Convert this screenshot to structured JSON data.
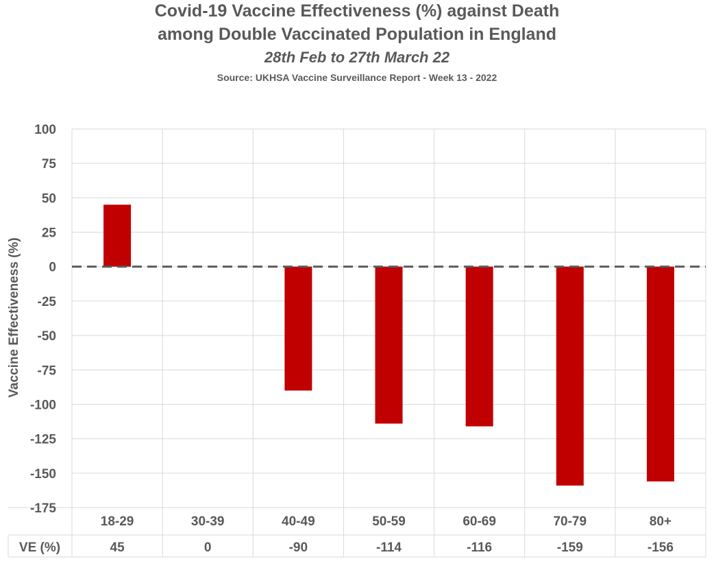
{
  "header": {
    "title_line1": "Covid-19 Vaccine Effectiveness (%) against Death",
    "title_line2": "among Double Vaccinated Population in England",
    "subtitle": "28th Feb to 27th March 22",
    "source": "Source: UKHSA Vaccine Surveillance Report - Week 13 - 2022"
  },
  "chart_data": {
    "type": "bar",
    "title": "Covid-19 Vaccine Effectiveness (%) against Death among Double Vaccinated Population in England",
    "subtitle": "28th Feb to 27th March 22",
    "xlabel": "",
    "ylabel": "Vaccine Effectiveness (%)",
    "categories": [
      "18-29",
      "30-39",
      "40-49",
      "50-59",
      "60-69",
      "70-79",
      "80+"
    ],
    "values": [
      45,
      0,
      -90,
      -114,
      -116,
      -159,
      -156
    ],
    "ylim": [
      -175,
      100
    ],
    "yticks": [
      100,
      75,
      50,
      25,
      0,
      -25,
      -50,
      -75,
      -100,
      -125,
      -150,
      -175
    ],
    "grid": true,
    "zero_line": "dashed",
    "bar_color": "#C00000",
    "table": {
      "row_label": "VE (%)",
      "values": [
        "45",
        "0",
        "-90",
        "-114",
        "-116",
        "-159",
        "-156"
      ]
    }
  }
}
